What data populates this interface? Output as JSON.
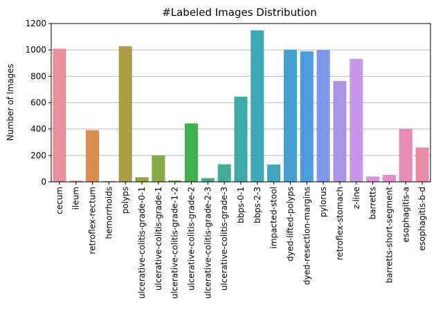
{
  "chart_data": {
    "type": "bar",
    "title": "#Labeled Images Distribution",
    "xlabel": "",
    "ylabel": "Number of Images",
    "ylim": [
      0,
      1200
    ],
    "yticks": [
      0,
      200,
      400,
      600,
      800,
      1000,
      1200
    ],
    "grid": "horizontal",
    "categories": [
      "cecum",
      "ileum",
      "retroflex-rectum",
      "hemorrhoids",
      "polyps",
      "ulcerative-colitis-grade-0-1",
      "ulcerative-colitis-grade-1",
      "ulcerative-colitis-grade-1-2",
      "ulcerative-colitis-grade-2",
      "ulcerative-colitis-grade-2-3",
      "ulcerative-colitis-grade-3",
      "bbps-0-1",
      "bbps-2-3",
      "impacted-stool",
      "dyed-lifted-polyps",
      "dyed-resection-margins",
      "pylorus",
      "retroflex-stomach",
      "z-line",
      "barretts",
      "barretts-short-segment",
      "esophagitis-a",
      "esophagitis-b-d"
    ],
    "values": [
      1009,
      9,
      391,
      6,
      1028,
      35,
      201,
      11,
      443,
      28,
      133,
      646,
      1148,
      131,
      1002,
      989,
      999,
      764,
      932,
      41,
      53,
      403,
      260
    ],
    "colors": [
      "#e8909a",
      "#e29476",
      "#d88d4b",
      "#be9244",
      "#aa9d44",
      "#9aa443",
      "#85ab42",
      "#62b041",
      "#3fb24e",
      "#40b07c",
      "#3fae94",
      "#3eaba6",
      "#3ea8b4",
      "#41a5c2",
      "#44a1d1",
      "#4c9de0",
      "#7f97e7",
      "#a994e8",
      "#c597e8",
      "#e18fe6",
      "#e88ad1",
      "#e98bb7",
      "#e98ba5"
    ]
  }
}
